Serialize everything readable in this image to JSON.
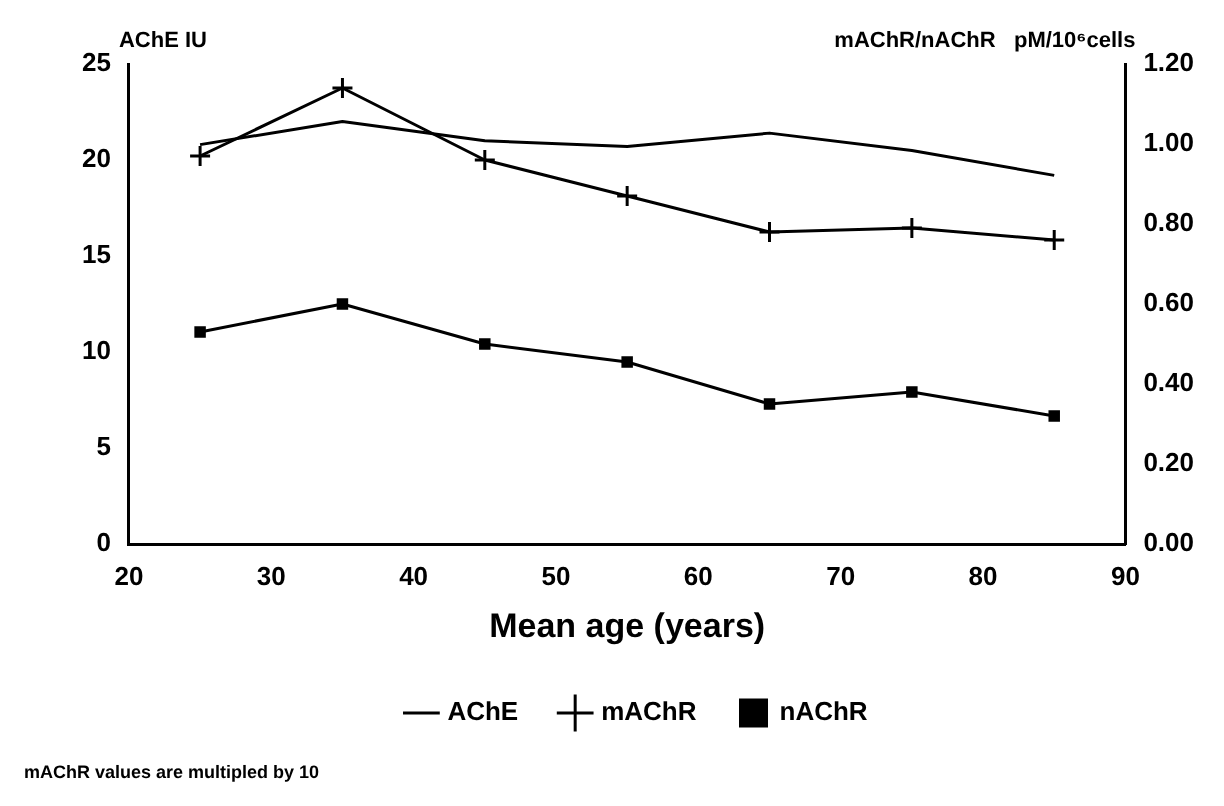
{
  "chart_data": {
    "type": "line",
    "xlabel": "Mean age (years)",
    "ylabel": "AChE IU",
    "y2label": "mAChR/nAChR   pM/10⁶cells",
    "x": [
      25,
      35,
      45,
      55,
      65,
      75,
      85
    ],
    "series": [
      {
        "name": "AChE",
        "color": "#000000",
        "marker": "none",
        "values": [
          20.8,
          22.0,
          21.0,
          20.7,
          21.4,
          20.5,
          19.2
        ]
      },
      {
        "name": "mAChR",
        "color": "#000000",
        "marker": "cross",
        "axis": "y2",
        "values": [
          0.97,
          1.14,
          0.96,
          0.87,
          0.78,
          0.79,
          0.76
        ]
      },
      {
        "name": "nAChR",
        "color": "#000000",
        "marker": "square",
        "axis": "y2",
        "values": [
          0.53,
          0.6,
          0.5,
          0.455,
          0.35,
          0.38,
          0.32
        ]
      }
    ],
    "xlim": [
      20,
      90
    ],
    "xticks": [
      20,
      30,
      40,
      50,
      60,
      70,
      80,
      90
    ],
    "ylim": [
      0,
      25
    ],
    "yticks": [
      0,
      5,
      10,
      15,
      20,
      25
    ],
    "y2lim": [
      0,
      1.2
    ],
    "y2ticks": [
      {
        "value": 0,
        "label": "0.00"
      },
      {
        "value": 0.2,
        "label": "0.20"
      },
      {
        "value": 0.4,
        "label": "0.40"
      },
      {
        "value": 0.6,
        "label": "0.60"
      },
      {
        "value": 0.8,
        "label": "0.80"
      },
      {
        "value": 1.0,
        "label": "1.00"
      },
      {
        "value": 1.2,
        "label": "1.20"
      }
    ],
    "grid": false,
    "legend": "bottom",
    "line_style": "solid",
    "annotations": [
      "mAChR values are multipled by 10"
    ]
  }
}
